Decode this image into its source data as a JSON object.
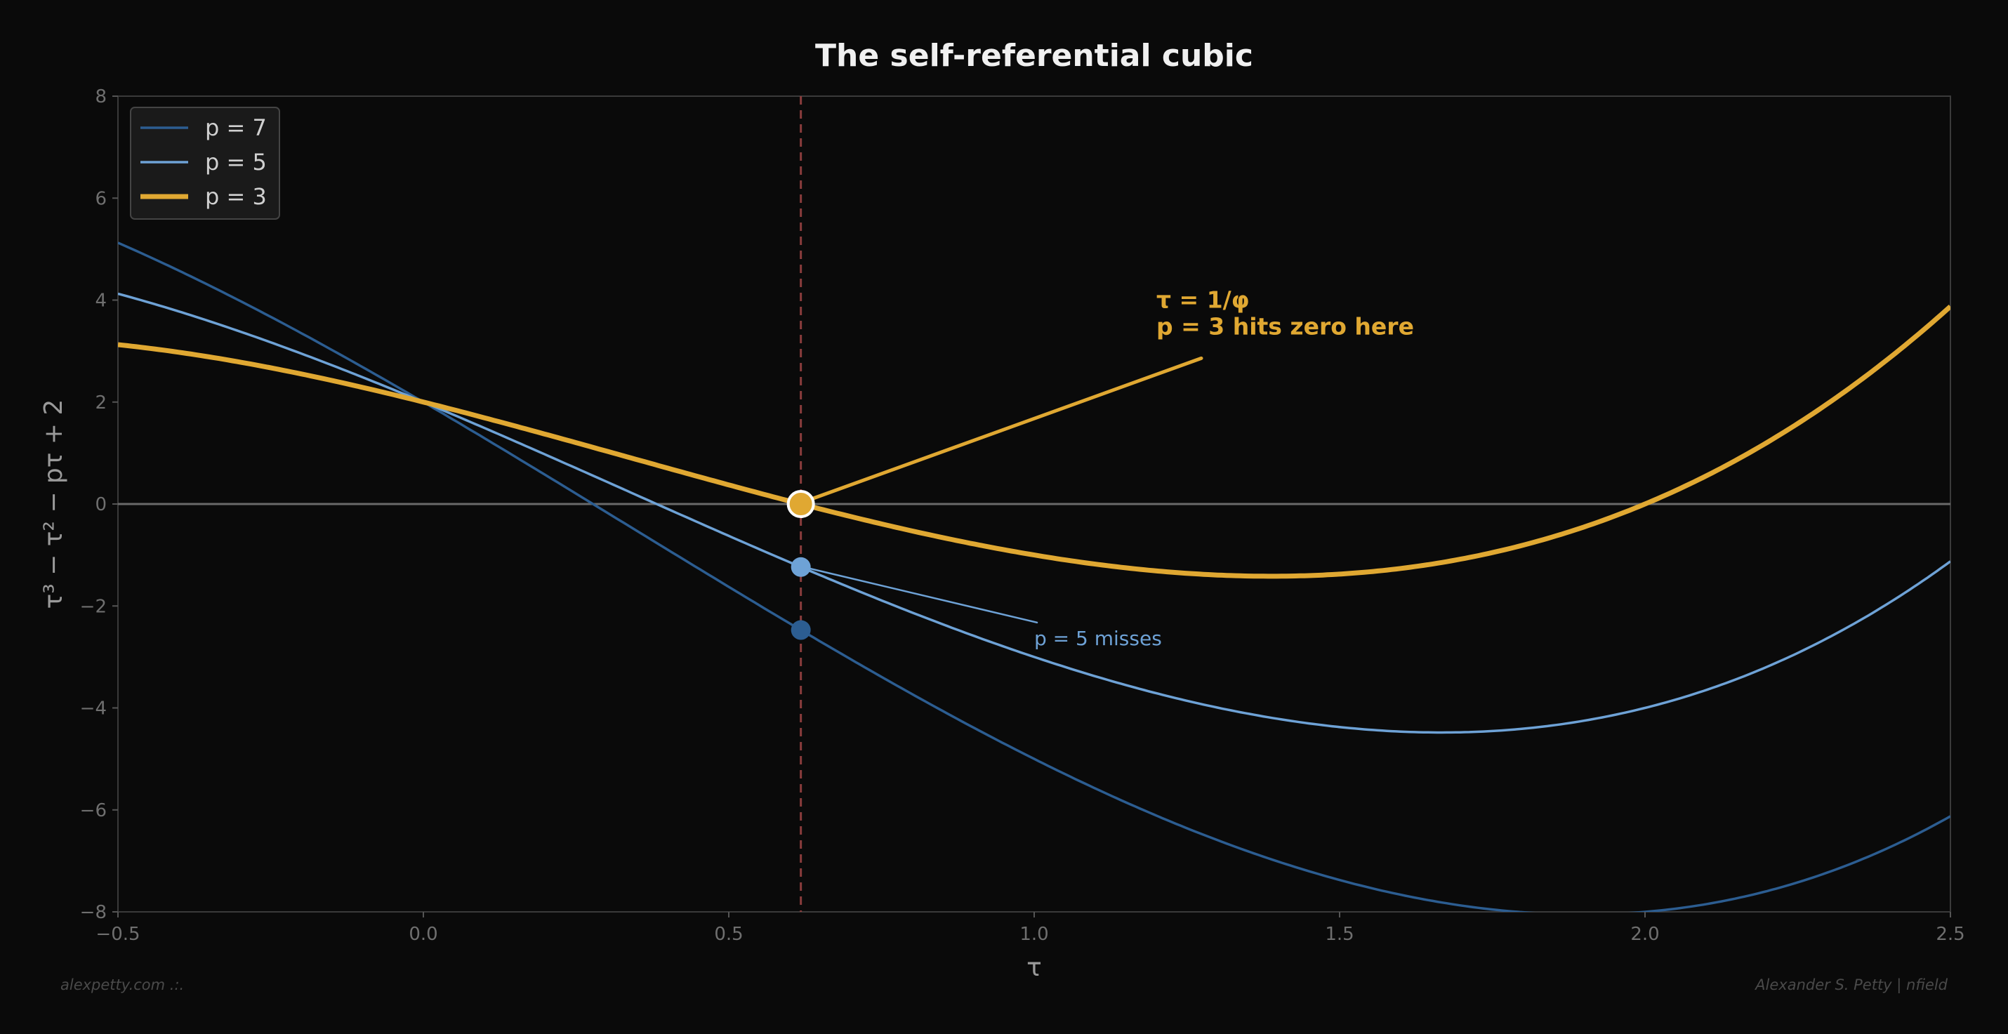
{
  "chart_data": {
    "type": "line",
    "title": "The self-referential cubic",
    "xlabel": "τ",
    "ylabel": "τ³ − τ² − pτ + 2",
    "xlim": [
      -0.5,
      2.5
    ],
    "ylim": [
      -8,
      8
    ],
    "xticks": [
      "−0.5",
      "0.0",
      "0.5",
      "1.0",
      "1.5",
      "2.0",
      "2.5"
    ],
    "xtick_values": [
      -0.5,
      0,
      0.5,
      1,
      1.5,
      2,
      2.5
    ],
    "yticks": [
      "−8",
      "−6",
      "−4",
      "−2",
      "0",
      "2",
      "4",
      "6",
      "8"
    ],
    "ytick_values": [
      -8,
      -6,
      -4,
      -2,
      0,
      2,
      4,
      6,
      8
    ],
    "grid": false,
    "legend_position": "top-left",
    "series": [
      {
        "name": "p = 7",
        "p": 7,
        "color": "#2c5d91"
      },
      {
        "name": "p = 5",
        "p": 5,
        "color": "#6ea2d6"
      },
      {
        "name": "p = 3",
        "p": 3,
        "color": "#e0a832"
      }
    ],
    "vertical_line": {
      "x": 0.618,
      "color": "#8a3c3c",
      "style": "dashed"
    },
    "horizontal_line": {
      "y": 0,
      "color": "#6a6a6a"
    },
    "markers": [
      {
        "x": 0.618,
        "y": 0,
        "color": "#e0a832"
      },
      {
        "x": 0.618,
        "y": -1.236,
        "color": "#6ea2d6"
      },
      {
        "x": 0.618,
        "y": -2.472,
        "color": "#2c5d91"
      }
    ],
    "annotations": [
      {
        "lines": [
          "τ = 1/φ",
          "p = 3 hits zero here"
        ],
        "x": 1.2,
        "y": 3.3,
        "target": [
          0.618,
          0
        ],
        "color": "#e0a832"
      },
      {
        "lines": [
          "p = 5 misses"
        ],
        "x": 1.0,
        "y": -2.6,
        "target": [
          0.618,
          -1.236
        ],
        "color": "#6ea2d6"
      }
    ]
  },
  "footer": {
    "left": "alexpetty.com  .:.",
    "right": "Alexander S. Petty  |  nfield"
  }
}
